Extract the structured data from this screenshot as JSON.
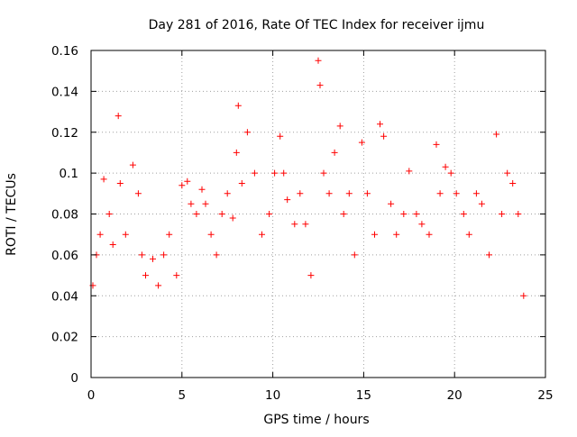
{
  "chart_data": {
    "type": "scatter",
    "title": "Day 281 of 2016, Rate Of TEC Index for receiver ijmu",
    "xlabel": "GPS time / hours",
    "ylabel": "ROTI / TECUs",
    "xlim": [
      0,
      25
    ],
    "ylim": [
      0,
      0.16
    ],
    "xticks": [
      0,
      5,
      10,
      15,
      20,
      25
    ],
    "xtick_labels": [
      "0",
      "5",
      "10",
      "15",
      "20",
      "25"
    ],
    "yticks": [
      0,
      0.02,
      0.04,
      0.06,
      0.08,
      0.1,
      0.12,
      0.14,
      0.16
    ],
    "ytick_labels": [
      "0",
      "0.02",
      "0.04",
      "0.06",
      "0.08",
      "0.1",
      "0.12",
      "0.14",
      "0.16"
    ],
    "grid": true,
    "marker": "+",
    "color": "#ff0000",
    "series": [
      {
        "name": "ROTI",
        "x": [
          0.1,
          0.3,
          0.5,
          0.7,
          1.0,
          1.2,
          1.5,
          1.6,
          1.9,
          2.3,
          2.6,
          2.8,
          3.0,
          3.4,
          3.7,
          4.0,
          4.3,
          4.7,
          5.0,
          5.3,
          5.5,
          5.8,
          6.1,
          6.3,
          6.6,
          6.9,
          7.2,
          7.5,
          7.8,
          8.0,
          8.1,
          8.3,
          8.6,
          9.0,
          9.4,
          9.8,
          10.1,
          10.4,
          10.6,
          10.8,
          11.2,
          11.5,
          11.8,
          12.1,
          12.5,
          12.6,
          12.8,
          13.1,
          13.4,
          13.7,
          13.9,
          14.2,
          14.5,
          14.9,
          15.2,
          15.6,
          15.9,
          16.1,
          16.5,
          16.8,
          17.2,
          17.5,
          17.9,
          18.2,
          18.6,
          19.0,
          19.2,
          19.5,
          19.8,
          20.1,
          20.5,
          20.8,
          21.2,
          21.5,
          21.9,
          22.3,
          22.6,
          22.9,
          23.2,
          23.5,
          23.8
        ],
        "y": [
          0.045,
          0.06,
          0.07,
          0.097,
          0.08,
          0.065,
          0.128,
          0.095,
          0.07,
          0.104,
          0.09,
          0.06,
          0.05,
          0.058,
          0.045,
          0.06,
          0.07,
          0.05,
          0.094,
          0.096,
          0.085,
          0.08,
          0.092,
          0.085,
          0.07,
          0.06,
          0.08,
          0.09,
          0.078,
          0.11,
          0.133,
          0.095,
          0.12,
          0.1,
          0.07,
          0.08,
          0.1,
          0.118,
          0.1,
          0.087,
          0.075,
          0.09,
          0.075,
          0.05,
          0.155,
          0.143,
          0.1,
          0.09,
          0.11,
          0.123,
          0.08,
          0.09,
          0.06,
          0.115,
          0.09,
          0.07,
          0.124,
          0.118,
          0.085,
          0.07,
          0.08,
          0.101,
          0.08,
          0.075,
          0.07,
          0.114,
          0.09,
          0.103,
          0.1,
          0.09,
          0.08,
          0.07,
          0.09,
          0.085,
          0.06,
          0.119,
          0.08,
          0.1,
          0.095,
          0.08,
          0.04
        ]
      }
    ]
  }
}
